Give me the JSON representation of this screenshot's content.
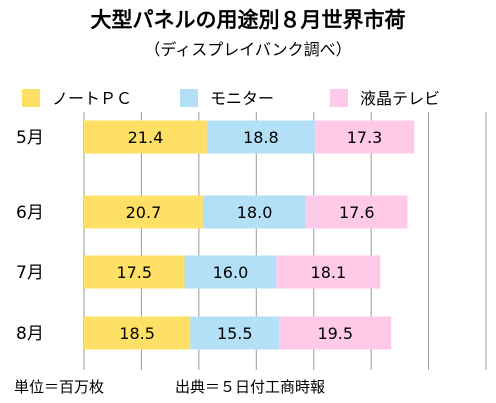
{
  "title": "大型パネルの用途別８月世界市荷",
  "subtitle": "（ディスプレイバンク調べ）",
  "footer": {
    "unit": "単位＝百万枚",
    "source": "出典＝５日付工商時報"
  },
  "chart_data": {
    "type": "bar",
    "orientation": "horizontal",
    "stacked": true,
    "categories": [
      "5月",
      "6月",
      "7月",
      "8月"
    ],
    "series": [
      {
        "name": "ノートＰＣ",
        "color": "#FFE066",
        "values": [
          21.4,
          20.7,
          17.5,
          18.5
        ]
      },
      {
        "name": "モニター",
        "color": "#B3DFF7",
        "values": [
          18.8,
          18.0,
          16.0,
          15.5
        ]
      },
      {
        "name": "液晶テレビ",
        "color": "#FFC9E8",
        "values": [
          17.3,
          17.6,
          18.1,
          19.5
        ]
      }
    ],
    "xlim": [
      0,
      70
    ],
    "grid": true,
    "legend": "top"
  }
}
